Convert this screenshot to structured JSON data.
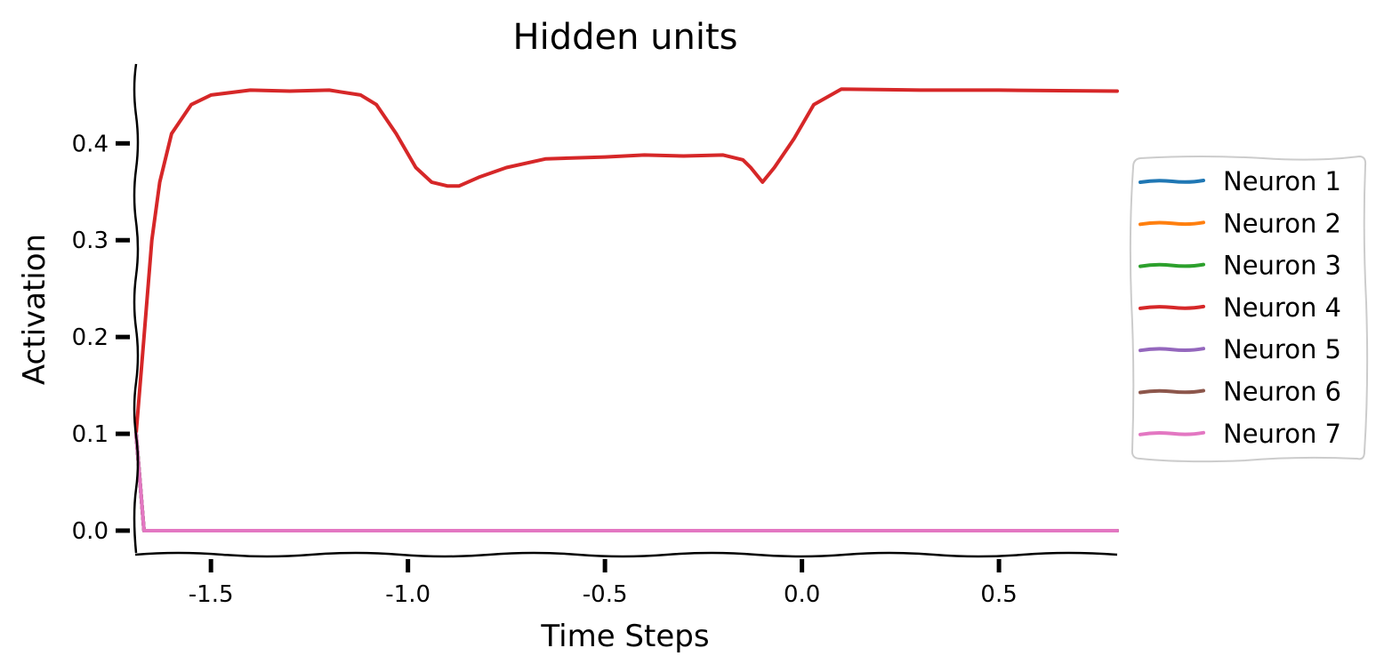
{
  "chart_data": {
    "type": "line",
    "title": "Hidden units",
    "xlabel": "Time Steps",
    "ylabel": "Activation",
    "xlim": [
      -1.69,
      0.8
    ],
    "ylim": [
      -0.023,
      0.482
    ],
    "xticks": [
      -1.5,
      -1.0,
      -0.5,
      0.0,
      0.5
    ],
    "xtick_labels": [
      "-1.5",
      "-1.0",
      "-0.5",
      "0.0",
      "0.5"
    ],
    "yticks": [
      0.0,
      0.1,
      0.2,
      0.3,
      0.4
    ],
    "ytick_labels": [
      "0.0",
      "0.1",
      "0.2",
      "0.3",
      "0.4"
    ],
    "grid": false,
    "legend_position": "right",
    "series": [
      {
        "name": "Neuron 1",
        "color": "#1f77b4",
        "x": [
          -1.69,
          -1.67,
          0.8
        ],
        "y": [
          0.1,
          0.0,
          0.0
        ]
      },
      {
        "name": "Neuron 2",
        "color": "#ff7f0e",
        "x": [
          -1.69,
          -1.67,
          0.8
        ],
        "y": [
          0.1,
          0.0,
          0.0
        ]
      },
      {
        "name": "Neuron 3",
        "color": "#2ca02c",
        "x": [
          -1.69,
          -1.67,
          0.8
        ],
        "y": [
          0.1,
          0.0,
          0.0
        ]
      },
      {
        "name": "Neuron 4",
        "color": "#d62728",
        "x": [
          -1.69,
          -1.67,
          -1.65,
          -1.63,
          -1.6,
          -1.55,
          -1.5,
          -1.4,
          -1.3,
          -1.2,
          -1.12,
          -1.08,
          -1.03,
          -0.98,
          -0.94,
          -0.9,
          -0.87,
          -0.82,
          -0.75,
          -0.65,
          -0.5,
          -0.4,
          -0.3,
          -0.2,
          -0.15,
          -0.13,
          -0.1,
          -0.07,
          -0.02,
          0.03,
          0.1,
          0.3,
          0.5,
          0.8
        ],
        "y": [
          0.1,
          0.2,
          0.3,
          0.36,
          0.41,
          0.44,
          0.45,
          0.455,
          0.454,
          0.455,
          0.45,
          0.44,
          0.41,
          0.375,
          0.36,
          0.356,
          0.356,
          0.365,
          0.375,
          0.384,
          0.386,
          0.388,
          0.387,
          0.388,
          0.383,
          0.375,
          0.36,
          0.375,
          0.405,
          0.44,
          0.456,
          0.455,
          0.455,
          0.454
        ]
      },
      {
        "name": "Neuron 5",
        "color": "#9467bd",
        "x": [
          -1.69,
          -1.67,
          0.8
        ],
        "y": [
          0.1,
          0.0,
          0.0
        ]
      },
      {
        "name": "Neuron 6",
        "color": "#8c564b",
        "x": [
          -1.69,
          -1.67,
          0.8
        ],
        "y": [
          0.1,
          0.0,
          0.0
        ]
      },
      {
        "name": "Neuron 7",
        "color": "#e377c2",
        "x": [
          -1.69,
          -1.67,
          0.8
        ],
        "y": [
          0.1,
          0.0,
          0.0
        ]
      }
    ]
  }
}
